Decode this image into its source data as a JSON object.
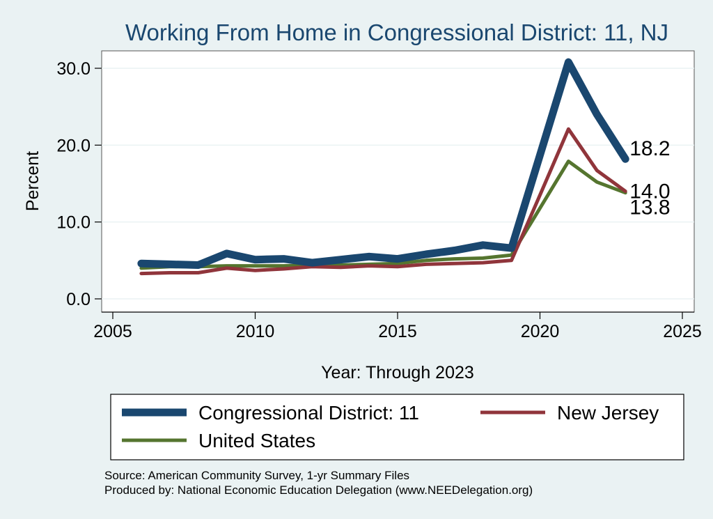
{
  "chart_data": {
    "type": "line",
    "title": "Working From Home in Congressional District: 11, NJ",
    "xlabel": "Year: Through 2023",
    "ylabel": "Percent",
    "xlim": [
      2005,
      2025
    ],
    "ylim": [
      0,
      30
    ],
    "x_ticks": [
      2005,
      2010,
      2015,
      2020,
      2025
    ],
    "x_tick_labels": [
      "2005",
      "2010",
      "2015",
      "2020",
      "2025"
    ],
    "y_ticks": [
      0,
      10,
      20,
      30
    ],
    "y_tick_labels": [
      "0.0",
      "10.0",
      "20.0",
      "30.0"
    ],
    "grid": true,
    "legend_position": "bottom",
    "x": [
      2006,
      2007,
      2008,
      2009,
      2010,
      2011,
      2012,
      2013,
      2014,
      2015,
      2016,
      2017,
      2018,
      2019,
      2020,
      2021,
      2022,
      2023
    ],
    "series": [
      {
        "name": "Congressional District: 11",
        "color": "#1a476f",
        "values": [
          4.6,
          4.5,
          4.4,
          5.9,
          5.1,
          5.2,
          4.7,
          5.1,
          5.5,
          5.2,
          5.8,
          6.3,
          7.0,
          6.6,
          18.7,
          30.8,
          24.0,
          18.2
        ],
        "end_label": "18.2"
      },
      {
        "name": "New Jersey",
        "color": "#90353b",
        "values": [
          3.3,
          3.4,
          3.4,
          4.0,
          3.7,
          3.9,
          4.2,
          4.1,
          4.3,
          4.2,
          4.5,
          4.6,
          4.7,
          5.0,
          13.5,
          22.1,
          16.7,
          14.0
        ],
        "end_label": "14.0"
      },
      {
        "name": "United States",
        "color": "#55752f",
        "values": [
          4.0,
          4.2,
          4.2,
          4.3,
          4.3,
          4.3,
          4.4,
          4.4,
          4.5,
          4.6,
          5.0,
          5.2,
          5.3,
          5.7,
          11.8,
          17.9,
          15.2,
          13.8
        ],
        "end_label": "13.8"
      }
    ]
  },
  "footer": {
    "source": "Source: American Community Survey, 1-yr Summary Files",
    "produced_by": "Produced by: National Economic Education Delegation (www.NEEDelegation.org)"
  }
}
